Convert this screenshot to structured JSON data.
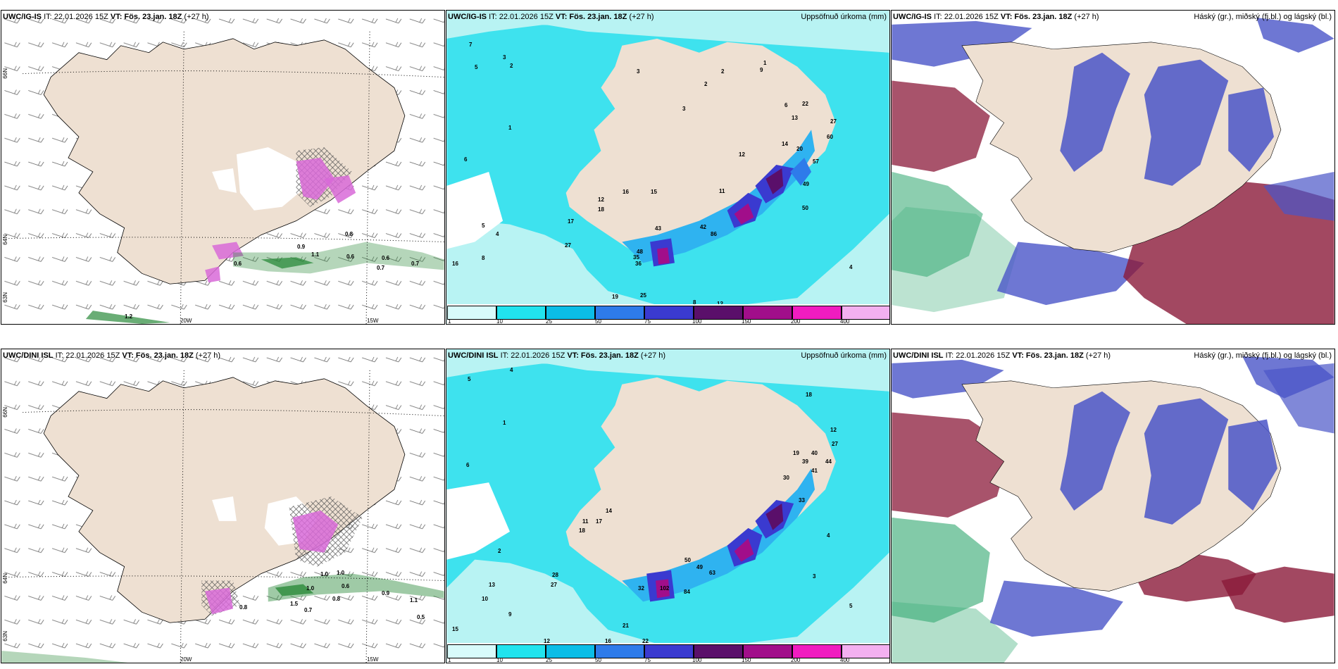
{
  "colors": {
    "land": "#eee0d2",
    "sea_light": "#b8f3f3",
    "sea_mid": "#3ee2ee",
    "sea_blue": "#2fb3f0",
    "wind_green": "#2a8a3a",
    "precip_purple": "#d86ad8",
    "cloud_high": "#8b1a3a",
    "cloud_mid": "#4a55c8",
    "cloud_low": "#3fae7a"
  },
  "rows": [
    {
      "model_label": "UWC/IG-IS",
      "init_text": "IT: 22.01.2026 15Z",
      "valid_label": "VT:",
      "valid_text": "Fös. 23.jan. 18Z",
      "lead_text": "(+27 h)",
      "lat_labels": [
        "66N",
        "64N",
        "63N"
      ],
      "lon_labels": [
        "20W",
        "15W"
      ],
      "wind_values": [
        "0.8",
        "0.6",
        "0.6",
        "0.6",
        "0.7",
        "0.7",
        "1.1",
        "0.9",
        "1.2"
      ],
      "precip_values": [
        "7",
        "5",
        "3",
        "2",
        "1",
        "6",
        "5",
        "4",
        "8",
        "16",
        "27",
        "17",
        "12",
        "18",
        "16",
        "15",
        "9",
        "1",
        "2",
        "3",
        "6",
        "13",
        "12",
        "22",
        "27",
        "20",
        "14",
        "11",
        "43",
        "48",
        "42",
        "36",
        "86",
        "57",
        "60",
        "50",
        "49",
        "35",
        "25",
        "19",
        "3",
        "2",
        "4",
        "8",
        "12"
      ]
    },
    {
      "model_label": "UWC/DINI ISL",
      "init_text": "IT: 22.01.2026 15Z",
      "valid_label": "VT:",
      "valid_text": "Fös. 23.jan. 18Z",
      "lead_text": "(+27 h)",
      "lat_labels": [
        "66N",
        "64N",
        "63N"
      ],
      "lon_labels": [
        "20W",
        "15W"
      ],
      "wind_values": [
        "1.0",
        "1.0",
        "1.0",
        "0.8",
        "0.6",
        "0.7",
        "0.9",
        "1.1",
        "0.5",
        "0.8",
        "1.5"
      ],
      "precip_values": [
        "4",
        "5",
        "6",
        "2",
        "1",
        "10",
        "15",
        "9",
        "12",
        "22",
        "28",
        "27",
        "17",
        "11",
        "14",
        "18",
        "50",
        "49",
        "63",
        "84",
        "32",
        "102",
        "21",
        "16",
        "13",
        "18",
        "12",
        "27",
        "44",
        "40",
        "39",
        "41",
        "33",
        "19",
        "30",
        "5",
        "3",
        "4"
      ]
    }
  ],
  "precip_panel": {
    "title": "Uppsöfnuð úrkoma (mm)",
    "legend_ticks": [
      "1",
      "10",
      "25",
      "50",
      "75",
      "100",
      "150",
      "200",
      "400"
    ],
    "legend_colors": [
      "#d8fbfb",
      "#21e3ee",
      "#0bbde7",
      "#2e7bea",
      "#3a3ad0",
      "#5a0f6a",
      "#a10e8a",
      "#f01cc0",
      "#f3b0f0"
    ]
  },
  "cloud_panel": {
    "title": "Háský (gr.), miðský (fj.bl.) og lágský (bl.)"
  }
}
